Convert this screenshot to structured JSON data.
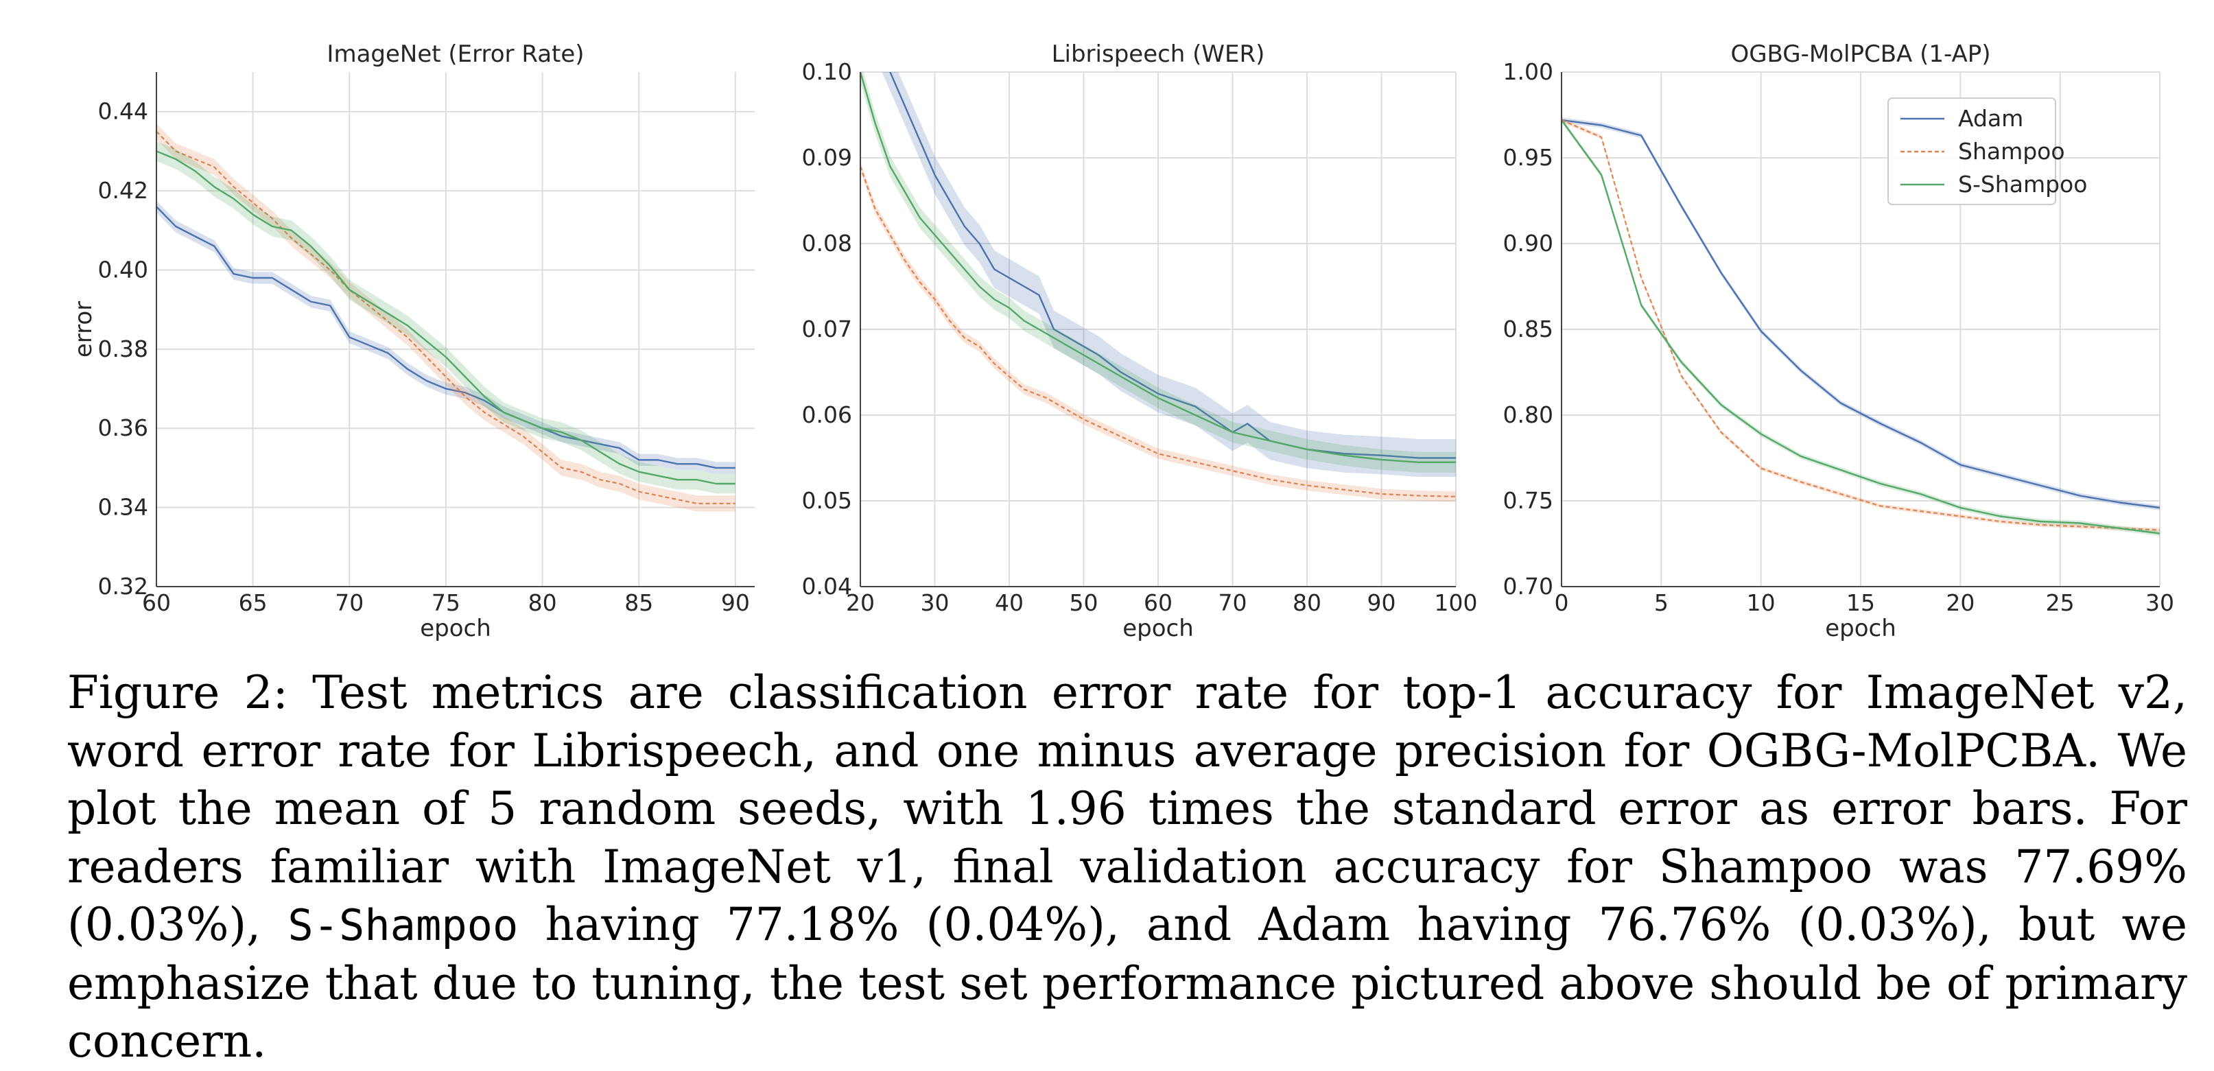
{
  "colors": {
    "Adam": "#4c72b0",
    "Shampoo": "#dd8452",
    "S-Shampoo": "#55a868",
    "grid": "#dddddd",
    "axis": "#444444",
    "text": "#262626"
  },
  "legend": {
    "entries": [
      "Adam",
      "Shampoo",
      "S-Shampoo"
    ],
    "placement": "top-right of third panel"
  },
  "chart_data": [
    {
      "type": "line",
      "title": "ImageNet (Error Rate)",
      "xlabel": "epoch",
      "ylabel": "error",
      "xlim": [
        60,
        91
      ],
      "ylim": [
        0.32,
        0.45
      ],
      "xticks": [
        60,
        65,
        70,
        75,
        80,
        85,
        90
      ],
      "xtick_labels": [
        "60",
        "65",
        "70",
        "75",
        "80",
        "85",
        "90"
      ],
      "yticks": [
        0.32,
        0.34,
        0.36,
        0.38,
        0.4,
        0.42,
        0.44
      ],
      "ytick_labels": [
        "0.32",
        "0.34",
        "0.36",
        "0.38",
        "0.40",
        "0.42",
        "0.44"
      ],
      "grid": true,
      "series": [
        {
          "name": "Adam",
          "style": "solid",
          "x": [
            60,
            61,
            63,
            64,
            65,
            66,
            67,
            68,
            69,
            70,
            71,
            72,
            73,
            74,
            75,
            76,
            77,
            78,
            79,
            80,
            81,
            82,
            83,
            84,
            85,
            86,
            87,
            88,
            89,
            90
          ],
          "y": [
            0.416,
            0.411,
            0.406,
            0.399,
            0.398,
            0.398,
            0.395,
            0.392,
            0.391,
            0.383,
            0.381,
            0.379,
            0.375,
            0.372,
            0.37,
            0.369,
            0.367,
            0.364,
            0.362,
            0.36,
            0.358,
            0.357,
            0.356,
            0.355,
            0.352,
            0.352,
            0.351,
            0.351,
            0.35,
            0.35
          ],
          "band": 0.0015
        },
        {
          "name": "Shampoo",
          "style": "dashed",
          "x": [
            60,
            61,
            63,
            64,
            65,
            66,
            67,
            68,
            69,
            70,
            71,
            72,
            73,
            74,
            75,
            76,
            77,
            78,
            79,
            80,
            81,
            82,
            83,
            84,
            85,
            86,
            87,
            88,
            89,
            90
          ],
          "y": [
            0.435,
            0.43,
            0.426,
            0.421,
            0.417,
            0.413,
            0.408,
            0.404,
            0.4,
            0.395,
            0.391,
            0.387,
            0.383,
            0.378,
            0.373,
            0.368,
            0.364,
            0.361,
            0.358,
            0.354,
            0.35,
            0.349,
            0.347,
            0.346,
            0.344,
            0.343,
            0.342,
            0.341,
            0.341,
            0.341
          ],
          "band": 0.002
        },
        {
          "name": "S-Shampoo",
          "style": "solid",
          "x": [
            60,
            61,
            62,
            63,
            64,
            65,
            66,
            67,
            68,
            69,
            70,
            71,
            72,
            73,
            74,
            75,
            76,
            77,
            78,
            79,
            80,
            81,
            82,
            83,
            84,
            85,
            86,
            87,
            88,
            89,
            90
          ],
          "y": [
            0.43,
            0.428,
            0.425,
            0.421,
            0.418,
            0.414,
            0.411,
            0.41,
            0.406,
            0.401,
            0.395,
            0.392,
            0.389,
            0.386,
            0.382,
            0.378,
            0.373,
            0.368,
            0.364,
            0.362,
            0.36,
            0.359,
            0.357,
            0.354,
            0.351,
            0.349,
            0.348,
            0.347,
            0.347,
            0.346,
            0.346
          ],
          "band": 0.0025
        }
      ]
    },
    {
      "type": "line",
      "title": "Librispeech (WER)",
      "xlabel": "epoch",
      "ylabel": "",
      "xlim": [
        20,
        100
      ],
      "ylim": [
        0.04,
        0.1
      ],
      "xticks": [
        20,
        30,
        40,
        50,
        60,
        70,
        80,
        90,
        100
      ],
      "xtick_labels": [
        "20",
        "30",
        "40",
        "50",
        "60",
        "70",
        "80",
        "90",
        "100"
      ],
      "yticks": [
        0.04,
        0.05,
        0.06,
        0.07,
        0.08,
        0.09,
        0.1
      ],
      "ytick_labels": [
        "0.04",
        "0.05",
        "0.06",
        "0.07",
        "0.08",
        "0.09",
        "0.10"
      ],
      "grid": true,
      "series": [
        {
          "name": "Adam",
          "style": "solid",
          "x": [
            20,
            24,
            28,
            30,
            32,
            34,
            36,
            38,
            40,
            44,
            46,
            48,
            50,
            52,
            55,
            60,
            65,
            70,
            72,
            75,
            80,
            85,
            90,
            95,
            100
          ],
          "y": [
            0.108,
            0.1,
            0.092,
            0.088,
            0.085,
            0.082,
            0.08,
            0.077,
            0.076,
            0.074,
            0.07,
            0.069,
            0.068,
            0.067,
            0.065,
            0.0625,
            0.061,
            0.058,
            0.059,
            0.057,
            0.056,
            0.0555,
            0.0553,
            0.055,
            0.055
          ],
          "band": 0.0022
        },
        {
          "name": "Shampoo",
          "style": "dashed",
          "x": [
            20,
            22,
            24,
            26,
            28,
            30,
            32,
            34,
            36,
            38,
            40,
            42,
            45,
            50,
            55,
            60,
            65,
            70,
            75,
            80,
            85,
            90,
            95,
            100
          ],
          "y": [
            0.089,
            0.084,
            0.081,
            0.078,
            0.0755,
            0.0735,
            0.071,
            0.069,
            0.068,
            0.066,
            0.0645,
            0.063,
            0.062,
            0.0595,
            0.0575,
            0.0555,
            0.0545,
            0.0535,
            0.0525,
            0.0518,
            0.0513,
            0.0508,
            0.0506,
            0.0505
          ],
          "band": 0.0006
        },
        {
          "name": "S-Shampoo",
          "style": "solid",
          "x": [
            20,
            22,
            24,
            26,
            28,
            30,
            32,
            34,
            36,
            38,
            40,
            42,
            44,
            46,
            48,
            50,
            55,
            60,
            65,
            70,
            75,
            80,
            85,
            90,
            95,
            100
          ],
          "y": [
            0.1,
            0.094,
            0.089,
            0.086,
            0.083,
            0.081,
            0.079,
            0.077,
            0.075,
            0.0735,
            0.0725,
            0.071,
            0.07,
            0.069,
            0.068,
            0.067,
            0.0645,
            0.062,
            0.06,
            0.058,
            0.057,
            0.056,
            0.0553,
            0.0548,
            0.0545,
            0.0545
          ],
          "band": 0.0012
        }
      ]
    },
    {
      "type": "line",
      "title": "OGBG-MolPCBA (1-AP)",
      "xlabel": "epoch",
      "ylabel": "",
      "xlim": [
        0,
        30
      ],
      "ylim": [
        0.7,
        1.0
      ],
      "xticks": [
        0,
        5,
        10,
        15,
        20,
        25,
        30
      ],
      "xtick_labels": [
        "0",
        "5",
        "10",
        "15",
        "20",
        "25",
        "30"
      ],
      "yticks": [
        0.7,
        0.75,
        0.8,
        0.85,
        0.9,
        0.95,
        1.0
      ],
      "ytick_labels": [
        "0.70",
        "0.75",
        "0.80",
        "0.85",
        "0.90",
        "0.95",
        "1.00"
      ],
      "grid": true,
      "series": [
        {
          "name": "Adam",
          "style": "solid",
          "x": [
            0,
            2,
            4,
            6,
            8,
            10,
            12,
            14,
            16,
            18,
            20,
            22,
            24,
            26,
            28,
            30
          ],
          "y": [
            0.972,
            0.969,
            0.963,
            0.922,
            0.883,
            0.849,
            0.826,
            0.807,
            0.795,
            0.784,
            0.771,
            0.765,
            0.759,
            0.753,
            0.749,
            0.746
          ],
          "band": 0.0015
        },
        {
          "name": "Shampoo",
          "style": "dashed",
          "x": [
            0,
            2,
            4,
            6,
            8,
            10,
            12,
            14,
            16,
            18,
            20,
            22,
            24,
            26,
            28,
            30
          ],
          "y": [
            0.972,
            0.962,
            0.88,
            0.823,
            0.79,
            0.769,
            0.761,
            0.754,
            0.747,
            0.744,
            0.741,
            0.738,
            0.736,
            0.735,
            0.734,
            0.733
          ],
          "band": 0.0012
        },
        {
          "name": "S-Shampoo",
          "style": "solid",
          "x": [
            0,
            2,
            4,
            6,
            8,
            10,
            12,
            14,
            16,
            18,
            20,
            22,
            24,
            26,
            28,
            30
          ],
          "y": [
            0.972,
            0.94,
            0.864,
            0.831,
            0.806,
            0.789,
            0.776,
            0.768,
            0.76,
            0.754,
            0.746,
            0.741,
            0.738,
            0.737,
            0.734,
            0.731
          ],
          "band": 0.0015
        }
      ]
    }
  ],
  "caption": {
    "part1": "Figure 2: Test metrics are classification error rate for top-1 accuracy for ImageNet v2, word error rate for Librispeech, and one minus average precision for OGBG-MolPCBA. We plot the mean of 5 random seeds, with 1.96 times the standard error as error bars. For readers familiar with ImageNet v1, final validation accuracy for Shampoo was 77.69% (0.03%), ",
    "mono": "S-Shampoo",
    "part2": " having 77.18% (0.04%), and Adam having 76.76% (0.03%), but we emphasize that due to tuning, the test set performance pictured above should be of primary concern."
  }
}
